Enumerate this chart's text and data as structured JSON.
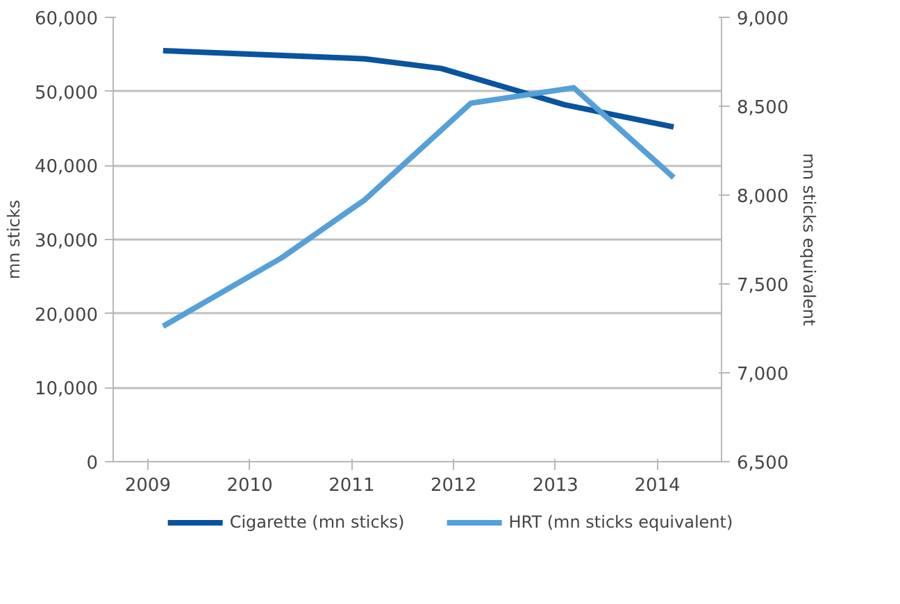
{
  "chart_data": {
    "type": "line",
    "ylabel": "mn sticks",
    "y2label": "mn sticks equivalent",
    "xlim": [
      2008.66,
      2014.63
    ],
    "xticks": [
      2009,
      2010,
      2011,
      2012,
      2013,
      2014
    ],
    "ylim": [
      0,
      60000
    ],
    "yticks": [
      {
        "value": 0,
        "label": "0"
      },
      {
        "value": 10000,
        "label": "10,000"
      },
      {
        "value": 20000,
        "label": "20,000"
      },
      {
        "value": 30000,
        "label": "30,000"
      },
      {
        "value": 40000,
        "label": "40,000"
      },
      {
        "value": 50000,
        "label": "50,000"
      },
      {
        "value": 60000,
        "label": "60,000"
      }
    ],
    "y2lim": [
      6500,
      9000
    ],
    "y2ticks": [
      {
        "value": 6500,
        "label": "6,500"
      },
      {
        "value": 7000,
        "label": "7,000"
      },
      {
        "value": 7500,
        "label": "7,500"
      },
      {
        "value": 8000,
        "label": "8,000"
      },
      {
        "value": 8500,
        "label": "8,500"
      },
      {
        "value": 9000,
        "label": "9,000"
      }
    ],
    "grid": "y",
    "legend": "bottom",
    "series": [
      {
        "name": "Cigarette (mn sticks)",
        "color": "#0a539e",
        "x": [
          2009.15,
          2011.13,
          2011.88,
          2013.09,
          2014.16
        ],
        "values": [
          55500,
          54400,
          53100,
          48200,
          45200
        ]
      },
      {
        "name": "HRT (mn sticks equivalent)",
        "color": "#55a0d8",
        "axis": "y2",
        "x": [
          2009.15,
          2010.31,
          2011.13,
          2012.17,
          2013.18,
          2014.16
        ],
        "values": [
          7262,
          7646,
          7974,
          8517,
          8604,
          8099
        ]
      }
    ]
  }
}
